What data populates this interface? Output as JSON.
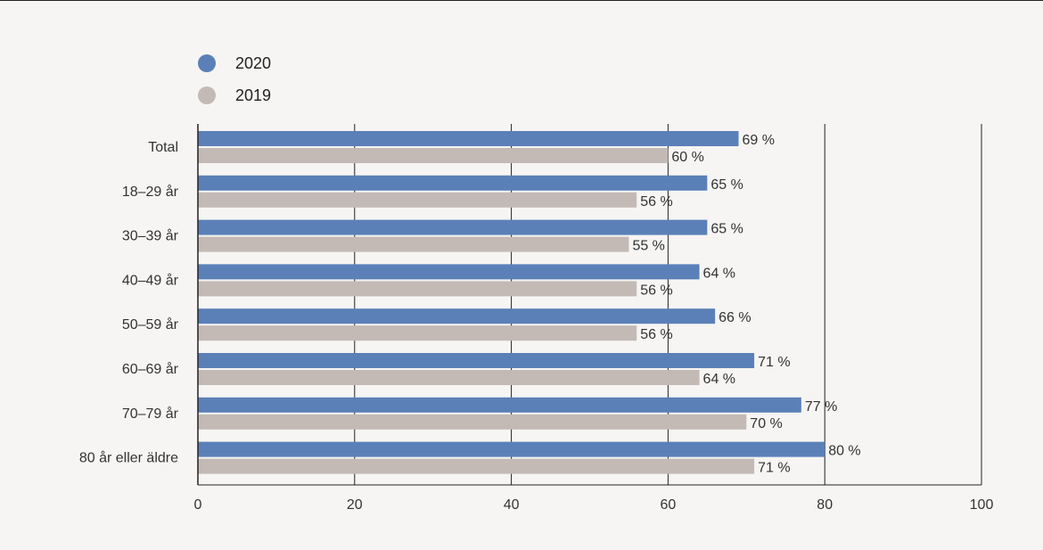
{
  "chart_data": {
    "type": "bar",
    "orientation": "horizontal",
    "categories": [
      "Total",
      "18–29 år",
      "30–39 år",
      "40–49 år",
      "50–59 år",
      "60–69 år",
      "70–79 år",
      "80 år eller äldre"
    ],
    "series": [
      {
        "name": "2020",
        "values": [
          69,
          65,
          65,
          64,
          66,
          71,
          77,
          80
        ],
        "labels": [
          "69 %",
          "65 %",
          "65 %",
          "64 %",
          "66 %",
          "71 %",
          "77 %",
          "80 %"
        ],
        "color": "#5b80b8"
      },
      {
        "name": "2019",
        "values": [
          60,
          56,
          55,
          56,
          56,
          64,
          70,
          71
        ],
        "labels": [
          "60 %",
          "56 %",
          "55 %",
          "56 %",
          "56 %",
          "64 %",
          "70 %",
          "71 %"
        ],
        "color": "#c4bab5"
      }
    ],
    "xlim": [
      0,
      100
    ],
    "xticks": [
      "0",
      "20",
      "40",
      "60",
      "80",
      "100"
    ],
    "grid": true,
    "legend_position": "top-left"
  }
}
